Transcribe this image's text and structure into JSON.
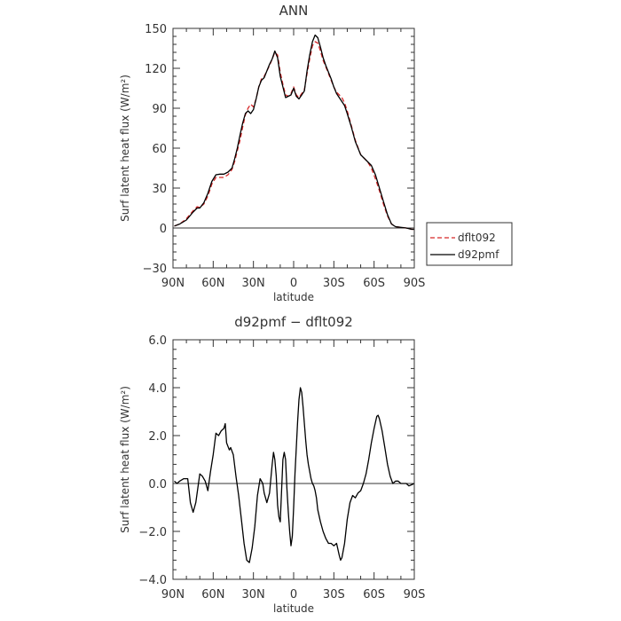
{
  "chart_data": [
    {
      "type": "line",
      "title": "ANN",
      "xlabel": "latitude",
      "ylabel": "Surf latent heat flux (W/m²)",
      "xlim": [
        90,
        -90
      ],
      "ylim": [
        -30,
        150
      ],
      "x_ticks": [
        90,
        60,
        30,
        0,
        -30,
        -60,
        -90
      ],
      "x_tick_labels": [
        "90N",
        "60N",
        "30N",
        "0",
        "30S",
        "60S",
        "90S"
      ],
      "y_ticks": [
        -30,
        0,
        30,
        60,
        90,
        120,
        150
      ],
      "y_tick_labels": [
        "−30",
        "0",
        "30",
        "60",
        "90",
        "120",
        "150"
      ],
      "legend_position": "right",
      "series": [
        {
          "name": "dflt092",
          "color": "#d62728",
          "dashed": true,
          "x": [
            89,
            85,
            80,
            75,
            72,
            70,
            67,
            64,
            61,
            58,
            55,
            52,
            49,
            46,
            44,
            42,
            40,
            38,
            36,
            34,
            32,
            30,
            28,
            26,
            24,
            22,
            20,
            18,
            16,
            14,
            12,
            10,
            8,
            6,
            4,
            2,
            0,
            -2,
            -4,
            -6,
            -8,
            -10,
            -12,
            -14,
            -16,
            -18,
            -20,
            -22,
            -24,
            -26,
            -28,
            -30,
            -32,
            -34,
            -36,
            -38,
            -40,
            -43,
            -46,
            -50,
            -55,
            -58,
            -61,
            -64,
            -67,
            -70,
            -73,
            -76,
            -80,
            -84,
            -88,
            -90
          ],
          "y": [
            1.5,
            3,
            7,
            13,
            16,
            15.5,
            18,
            24,
            33,
            38,
            38,
            38,
            40,
            44,
            50,
            58,
            66,
            76,
            85,
            90,
            93,
            91,
            97,
            106,
            112,
            114,
            118,
            122,
            127,
            132,
            130,
            117,
            108,
            100,
            99,
            101,
            106,
            100,
            98,
            101,
            104,
            116,
            127,
            137,
            140,
            139,
            133,
            126,
            121,
            116,
            111,
            106,
            102,
            100,
            98,
            94,
            88,
            77,
            66,
            55,
            50,
            45,
            37,
            28,
            18,
            9,
            3,
            1,
            0.5,
            0,
            -1,
            -1
          ]
        },
        {
          "name": "d92pmf",
          "color": "#000000",
          "dashed": false,
          "x": [
            89,
            85,
            80,
            75,
            72,
            70,
            67,
            64,
            61,
            58,
            55,
            52,
            49,
            46,
            44,
            42,
            40,
            38,
            36,
            34,
            32,
            30,
            28,
            26,
            24,
            22,
            20,
            18,
            16,
            14,
            12,
            10,
            8,
            6,
            4,
            2,
            0,
            -2,
            -4,
            -6,
            -8,
            -10,
            -12,
            -14,
            -16,
            -18,
            -20,
            -22,
            -24,
            -26,
            -28,
            -30,
            -32,
            -34,
            -36,
            -38,
            -40,
            -43,
            -46,
            -50,
            -55,
            -58,
            -61,
            -64,
            -67,
            -70,
            -73,
            -76,
            -80,
            -84,
            -88,
            -90
          ],
          "y": [
            1.5,
            3,
            6,
            12,
            15,
            15,
            19,
            26,
            35,
            40,
            40.5,
            40.5,
            42,
            45,
            52,
            60,
            70,
            79,
            86,
            88,
            86,
            89,
            97,
            106,
            111,
            113,
            118,
            123,
            127,
            133,
            128,
            114,
            106,
            98,
            99,
            100,
            105,
            99,
            97,
            100,
            103,
            118,
            130,
            140,
            145,
            143,
            136,
            128,
            122,
            117,
            112,
            106,
            101,
            98,
            95,
            92,
            86,
            76,
            65,
            55,
            50,
            47,
            40,
            30,
            20,
            10,
            3,
            1,
            0.5,
            0,
            -1,
            -1
          ]
        }
      ]
    },
    {
      "type": "line",
      "title": "d92pmf − dflt092",
      "xlabel": "latitude",
      "ylabel": "Surf latent heat flux (W/m²)",
      "xlim": [
        90,
        -90
      ],
      "ylim": [
        -4,
        6
      ],
      "x_ticks": [
        90,
        60,
        30,
        0,
        -30,
        -60,
        -90
      ],
      "x_tick_labels": [
        "90N",
        "60N",
        "30N",
        "0",
        "30S",
        "60S",
        "90S"
      ],
      "y_ticks": [
        -4,
        -2,
        0,
        2,
        4,
        6
      ],
      "y_tick_labels": [
        "−4.0",
        "−2.0",
        "0.0",
        "2.0",
        "4.0",
        "6.0"
      ],
      "series": [
        {
          "color": "#000000",
          "dashed": false,
          "x": [
            89,
            87,
            85,
            82,
            79,
            77,
            75,
            73,
            70,
            68,
            66,
            64,
            62,
            60,
            58,
            56,
            54,
            52,
            51,
            50,
            48,
            47,
            45,
            43,
            41,
            39,
            37,
            35,
            33,
            31,
            29,
            27,
            25,
            23,
            22,
            20,
            18,
            16,
            15,
            14,
            13,
            12,
            11,
            10,
            9,
            8,
            7,
            6,
            5,
            4,
            3,
            2,
            1,
            0,
            -1,
            -2,
            -3,
            -4,
            -5,
            -6,
            -7,
            -8,
            -9,
            -10,
            -11,
            -12,
            -13,
            -14,
            -15,
            -16,
            -17,
            -18,
            -20,
            -22,
            -24,
            -26,
            -28,
            -30,
            -32,
            -34,
            -35,
            -36,
            -38,
            -40,
            -42,
            -44,
            -46,
            -48,
            -50,
            -52,
            -54,
            -56,
            -58,
            -60,
            -62,
            -63,
            -64,
            -66,
            -68,
            -70,
            -72,
            -74,
            -76,
            -78,
            -80,
            -82,
            -84,
            -86,
            -88,
            -90
          ],
          "y": [
            0.1,
            0.0,
            0.1,
            0.2,
            0.2,
            -0.8,
            -1.2,
            -0.8,
            0.4,
            0.3,
            0.1,
            -0.3,
            0.5,
            1.2,
            2.1,
            2.0,
            2.2,
            2.3,
            2.5,
            1.7,
            1.4,
            1.5,
            1.2,
            0.3,
            -0.5,
            -1.5,
            -2.5,
            -3.2,
            -3.3,
            -2.7,
            -1.8,
            -0.5,
            0.2,
            0.0,
            -0.4,
            -0.8,
            -0.4,
            0.8,
            1.3,
            1.0,
            0.3,
            -0.9,
            -1.4,
            -1.6,
            -0.3,
            1.0,
            1.3,
            1.0,
            -0.2,
            -1.2,
            -2.0,
            -2.6,
            -2.2,
            -1.0,
            0.4,
            1.5,
            2.6,
            3.5,
            4.0,
            3.8,
            3.2,
            2.5,
            1.8,
            1.2,
            0.8,
            0.5,
            0.2,
            0.0,
            -0.1,
            -0.3,
            -0.6,
            -1.1,
            -1.6,
            -2.0,
            -2.3,
            -2.5,
            -2.5,
            -2.6,
            -2.5,
            -3.0,
            -3.2,
            -3.1,
            -2.5,
            -1.5,
            -0.8,
            -0.5,
            -0.6,
            -0.4,
            -0.3,
            0.0,
            0.4,
            1.0,
            1.7,
            2.3,
            2.8,
            2.85,
            2.7,
            2.2,
            1.5,
            0.8,
            0.3,
            0.0,
            0.1,
            0.1,
            0.0,
            0.0,
            0.0,
            -0.1,
            -0.05,
            0.0
          ]
        }
      ]
    }
  ]
}
